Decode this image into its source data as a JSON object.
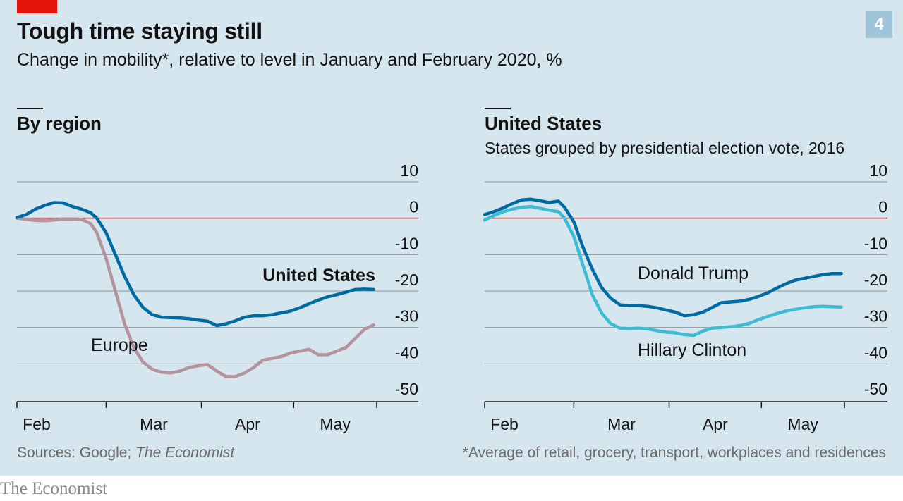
{
  "header": {
    "title": "Tough time staying still",
    "subtitle": "Change in mobility*, relative to level in January and February 2020, %",
    "badge": "4"
  },
  "footer": {
    "sources_prefix": "Sources: Google; ",
    "sources_italic": "The Economist",
    "footnote": "*Average of retail, grocery, transport, workplaces and residences"
  },
  "brand": "The Economist",
  "colors": {
    "background": "#d6e6ee",
    "zero_line": "#e3120b",
    "dark_blue": "#006ba2",
    "light_blue": "#3ebcd2",
    "mauve": "#b4929e",
    "grid": "#000000"
  },
  "chart_data": [
    {
      "type": "line",
      "title": "By region",
      "subtitle": "",
      "ylim": [
        -50,
        10
      ],
      "yticks": [
        10,
        0,
        -10,
        -20,
        -30,
        -40,
        -50
      ],
      "ytick_labels": [
        "10",
        "0",
        "-10",
        "-20",
        "-30",
        "-40",
        "-50"
      ],
      "xlim": [
        "2020-02-01",
        "2020-05-28"
      ],
      "xticks": [
        "2020-02-01",
        "2020-03-01",
        "2020-04-01",
        "2020-05-01"
      ],
      "xtick_labels": [
        "Feb",
        "Mar",
        "Apr",
        "May"
      ],
      "series": [
        {
          "name": "United States",
          "color": "#006ba2",
          "x": [
            "2020-02-01",
            "2020-02-04",
            "2020-02-07",
            "2020-02-10",
            "2020-02-13",
            "2020-02-16",
            "2020-02-19",
            "2020-02-22",
            "2020-02-25",
            "2020-02-27",
            "2020-03-01",
            "2020-03-04",
            "2020-03-07",
            "2020-03-10",
            "2020-03-13",
            "2020-03-16",
            "2020-03-19",
            "2020-03-22",
            "2020-03-25",
            "2020-03-28",
            "2020-03-31",
            "2020-04-03",
            "2020-04-06",
            "2020-04-09",
            "2020-04-12",
            "2020-04-15",
            "2020-04-18",
            "2020-04-21",
            "2020-04-24",
            "2020-04-27",
            "2020-04-30",
            "2020-05-03",
            "2020-05-06",
            "2020-05-09",
            "2020-05-12",
            "2020-05-15",
            "2020-05-18",
            "2020-05-21",
            "2020-05-24",
            "2020-05-27"
          ],
          "values": [
            0.2,
            1.0,
            2.5,
            3.5,
            4.3,
            4.2,
            3.2,
            2.5,
            1.5,
            0.0,
            -4.0,
            -10.0,
            -16.0,
            -21.0,
            -24.5,
            -26.5,
            -27.2,
            -27.3,
            -27.4,
            -27.6,
            -28.0,
            -28.3,
            -29.5,
            -29.0,
            -28.2,
            -27.2,
            -26.8,
            -26.8,
            -26.5,
            -26.0,
            -25.5,
            -24.6,
            -23.5,
            -22.5,
            -21.6,
            -21.0,
            -20.3,
            -19.6,
            -19.5,
            -19.6
          ]
        },
        {
          "name": "Europe",
          "color": "#b4929e",
          "x": [
            "2020-02-01",
            "2020-02-04",
            "2020-02-07",
            "2020-02-10",
            "2020-02-13",
            "2020-02-16",
            "2020-02-19",
            "2020-02-22",
            "2020-02-25",
            "2020-02-27",
            "2020-03-01",
            "2020-03-04",
            "2020-03-07",
            "2020-03-10",
            "2020-03-13",
            "2020-03-16",
            "2020-03-19",
            "2020-03-22",
            "2020-03-25",
            "2020-03-28",
            "2020-03-31",
            "2020-04-03",
            "2020-04-06",
            "2020-04-09",
            "2020-04-12",
            "2020-04-15",
            "2020-04-18",
            "2020-04-21",
            "2020-04-24",
            "2020-04-27",
            "2020-04-30",
            "2020-05-03",
            "2020-05-06",
            "2020-05-09",
            "2020-05-12",
            "2020-05-15",
            "2020-05-18",
            "2020-05-21",
            "2020-05-24",
            "2020-05-27"
          ],
          "values": [
            0.0,
            -0.3,
            -0.6,
            -0.7,
            -0.5,
            -0.2,
            -0.2,
            -0.3,
            -1.5,
            -4.0,
            -11.0,
            -20.0,
            -29.0,
            -35.5,
            -39.5,
            -41.5,
            -42.3,
            -42.5,
            -42.0,
            -41.0,
            -40.5,
            -40.2,
            -42.0,
            -43.5,
            -43.5,
            -42.5,
            -41.0,
            -39.0,
            -38.5,
            -38.0,
            -37.0,
            -36.5,
            -36.0,
            -37.5,
            -37.5,
            -36.5,
            -35.5,
            -33.0,
            -30.5,
            -29.3
          ]
        }
      ]
    },
    {
      "type": "line",
      "title": "United States",
      "subtitle": "States grouped by presidential election vote, 2016",
      "ylim": [
        -50,
        10
      ],
      "yticks": [
        10,
        0,
        -10,
        -20,
        -30,
        -40,
        -50
      ],
      "ytick_labels": [
        "10",
        "0",
        "-10",
        "-20",
        "-30",
        "-40",
        "-50"
      ],
      "xlim": [
        "2020-02-01",
        "2020-05-28"
      ],
      "xticks": [
        "2020-02-01",
        "2020-03-01",
        "2020-04-01",
        "2020-05-01"
      ],
      "xtick_labels": [
        "Feb",
        "Mar",
        "Apr",
        "May"
      ],
      "series": [
        {
          "name": "Donald Trump",
          "color": "#006ba2",
          "x": [
            "2020-02-01",
            "2020-02-04",
            "2020-02-07",
            "2020-02-10",
            "2020-02-13",
            "2020-02-16",
            "2020-02-19",
            "2020-02-22",
            "2020-02-25",
            "2020-02-27",
            "2020-03-01",
            "2020-03-04",
            "2020-03-07",
            "2020-03-10",
            "2020-03-13",
            "2020-03-16",
            "2020-03-19",
            "2020-03-22",
            "2020-03-25",
            "2020-03-28",
            "2020-03-31",
            "2020-04-03",
            "2020-04-06",
            "2020-04-09",
            "2020-04-12",
            "2020-04-15",
            "2020-04-18",
            "2020-04-21",
            "2020-04-24",
            "2020-04-27",
            "2020-04-30",
            "2020-05-03",
            "2020-05-06",
            "2020-05-09",
            "2020-05-12",
            "2020-05-15",
            "2020-05-18",
            "2020-05-21",
            "2020-05-24",
            "2020-05-27"
          ],
          "values": [
            1.0,
            1.8,
            2.8,
            4.0,
            5.0,
            5.2,
            4.8,
            4.3,
            4.7,
            3.0,
            -1.0,
            -8.0,
            -14.0,
            -19.0,
            -22.0,
            -23.8,
            -24.0,
            -24.0,
            -24.2,
            -24.6,
            -25.2,
            -25.8,
            -26.8,
            -26.5,
            -25.8,
            -24.5,
            -23.2,
            -23.0,
            -22.8,
            -22.3,
            -21.5,
            -20.5,
            -19.2,
            -18.0,
            -17.0,
            -16.5,
            -16.0,
            -15.5,
            -15.2,
            -15.2
          ]
        },
        {
          "name": "Hillary Clinton",
          "color": "#3ebcd2",
          "x": [
            "2020-02-01",
            "2020-02-04",
            "2020-02-07",
            "2020-02-10",
            "2020-02-13",
            "2020-02-16",
            "2020-02-19",
            "2020-02-22",
            "2020-02-25",
            "2020-02-27",
            "2020-03-01",
            "2020-03-04",
            "2020-03-07",
            "2020-03-10",
            "2020-03-13",
            "2020-03-16",
            "2020-03-19",
            "2020-03-22",
            "2020-03-25",
            "2020-03-28",
            "2020-03-31",
            "2020-04-03",
            "2020-04-06",
            "2020-04-09",
            "2020-04-12",
            "2020-04-15",
            "2020-04-18",
            "2020-04-21",
            "2020-04-24",
            "2020-04-27",
            "2020-04-30",
            "2020-05-03",
            "2020-05-06",
            "2020-05-09",
            "2020-05-12",
            "2020-05-15",
            "2020-05-18",
            "2020-05-21",
            "2020-05-24",
            "2020-05-27"
          ],
          "values": [
            -0.5,
            0.7,
            1.8,
            2.5,
            3.0,
            3.2,
            2.7,
            2.2,
            1.8,
            0.0,
            -5.0,
            -13.0,
            -21.0,
            -26.0,
            -29.0,
            -30.2,
            -30.3,
            -30.2,
            -30.4,
            -30.9,
            -31.3,
            -31.5,
            -32.0,
            -32.2,
            -31.0,
            -30.2,
            -30.0,
            -29.8,
            -29.5,
            -28.9,
            -27.9,
            -27.0,
            -26.2,
            -25.5,
            -25.0,
            -24.6,
            -24.3,
            -24.2,
            -24.3,
            -24.4
          ]
        }
      ]
    }
  ]
}
